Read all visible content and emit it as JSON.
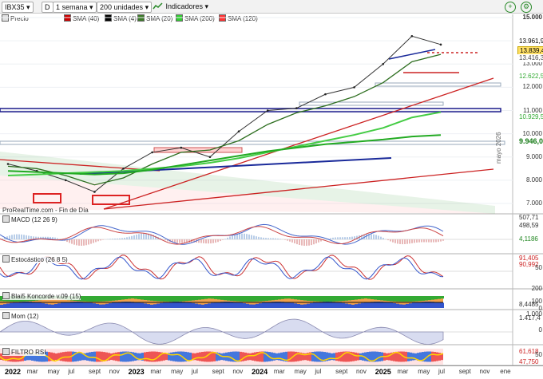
{
  "toolbar": {
    "symbol": "IBX35",
    "mode": "D",
    "period": "1 semana",
    "units": "200 unidades",
    "indicators_btn": "Indicadores",
    "icons": [
      "search-icon",
      "dropdown-icon",
      "chart-icon",
      "close-icon",
      "add-icon"
    ]
  },
  "legend": [
    {
      "label": "Precio",
      "color": "#e0e0e0"
    },
    {
      "label": "SMA (40)",
      "color": "#cc0000"
    },
    {
      "label": "SMA (4)",
      "color": "#000000"
    },
    {
      "label": "SMA (20)",
      "color": "#3d7a2a"
    },
    {
      "label": "SMA (200)",
      "color": "#33cc33"
    },
    {
      "label": "SMA (120)",
      "color": "#ff3333"
    }
  ],
  "price_axis": {
    "ticks": [
      "15.000",
      "14.000",
      "13.000",
      "12.000",
      "11.000",
      "10.000",
      "9.000",
      "8.000",
      "7.000"
    ],
    "tags": [
      {
        "text": "13.961,9",
        "color": "#ffffff",
        "fg": "#000000"
      },
      {
        "text": "13.839,4",
        "color": "#ffe066",
        "fg": "#000000"
      },
      {
        "text": "13.416,3",
        "color": "#ffffff",
        "fg": "#444444"
      },
      {
        "text": "12.622,5",
        "color": "#ffffff",
        "fg": "#33aa33"
      },
      {
        "text": "10.929,5",
        "color": "#ffffff",
        "fg": "#33aa33"
      },
      {
        "text": "9.946,0",
        "color": "#ffffff",
        "fg": "#117711"
      }
    ]
  },
  "watermark": "ProRealTime.com - Fin de Día",
  "vertical_note": "mayo 2026",
  "panels": {
    "macd": {
      "label": "MACD (12 26 9)",
      "values": [
        "507,71",
        "498,59",
        "4,1186"
      ]
    },
    "stoch": {
      "label": "Estocástico (26 8 5)",
      "values": [
        "91,405",
        "90,992"
      ],
      "ticks": [
        "50"
      ]
    },
    "blai5": {
      "label": "Blai5 Koncorde v.09 (15)",
      "values": [
        "8,4485"
      ],
      "ticks": [
        "200",
        "100",
        "0"
      ]
    },
    "mom": {
      "label": "Mom (12)",
      "values": [
        "1.417,4"
      ],
      "ticks": [
        "1.000",
        "0"
      ]
    },
    "rsi": {
      "label": "FILTRO RSI",
      "values": [
        "61,618",
        "47,750"
      ],
      "ticks": [
        "50"
      ]
    }
  },
  "x_axis": [
    {
      "text": "2022",
      "year": true
    },
    {
      "text": "mar"
    },
    {
      "text": "may"
    },
    {
      "text": "jul"
    },
    {
      "text": "sept"
    },
    {
      "text": "nov"
    },
    {
      "text": "2023",
      "year": true
    },
    {
      "text": "mar"
    },
    {
      "text": "may"
    },
    {
      "text": "jul"
    },
    {
      "text": "sept"
    },
    {
      "text": "nov"
    },
    {
      "text": "2024",
      "year": true
    },
    {
      "text": "mar"
    },
    {
      "text": "may"
    },
    {
      "text": "jul"
    },
    {
      "text": "sept"
    },
    {
      "text": "nov"
    },
    {
      "text": "2025",
      "year": true
    },
    {
      "text": "mar"
    },
    {
      "text": "may"
    },
    {
      "text": "jul"
    },
    {
      "text": "sept"
    },
    {
      "text": "nov"
    },
    {
      "text": "ene"
    }
  ],
  "chart_data": {
    "type": "line",
    "title": "IBX35",
    "xlabel": "",
    "ylabel": "",
    "ylim": [
      7000,
      15000
    ],
    "x": [
      "2022-01",
      "2022-04",
      "2022-07",
      "2022-10",
      "2023-01",
      "2023-04",
      "2023-07",
      "2023-10",
      "2024-01",
      "2024-04",
      "2024-07",
      "2024-10",
      "2025-01",
      "2025-03",
      "2025-05",
      "2025-06"
    ],
    "series": [
      {
        "name": "Precio",
        "values": [
          8700,
          8400,
          8000,
          7500,
          8500,
          9200,
          9400,
          9000,
          10100,
          11000,
          11100,
          11700,
          12000,
          13000,
          14200,
          13839
        ]
      },
      {
        "name": "SMA (20)",
        "values": [
          8600,
          8500,
          8200,
          7800,
          8100,
          8700,
          9200,
          9300,
          9700,
          10400,
          10900,
          11200,
          11600,
          12200,
          13100,
          13416
        ]
      },
      {
        "name": "SMA (200)",
        "values": [
          8200,
          8250,
          8300,
          8350,
          8400,
          8500,
          8600,
          8750,
          8950,
          9200,
          9450,
          9700,
          9950,
          10250,
          10700,
          10929
        ]
      },
      {
        "name": "SMA (120)",
        "values": [
          8400,
          8350,
          8300,
          8250,
          8300,
          8450,
          8650,
          8850,
          9050,
          9250,
          9400,
          9550,
          9650,
          9750,
          9880,
          9946
        ]
      }
    ]
  }
}
